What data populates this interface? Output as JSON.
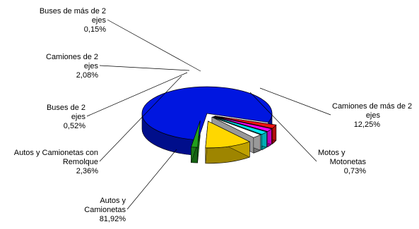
{
  "chart_data": {
    "type": "pie",
    "three_d": true,
    "exploded": true,
    "legend": "none",
    "slices": [
      {
        "label_lines": [
          "Autos y",
          "Camionetas"
        ],
        "pct_text": "81,92%",
        "value": 81.92,
        "color": "#0016E0"
      },
      {
        "label_lines": [
          "Autos y Camionetas con",
          "Remolque"
        ],
        "pct_text": "2,36%",
        "value": 2.36,
        "color": "#EE1111"
      },
      {
        "label_lines": [
          "Buses de 2",
          "ejes"
        ],
        "pct_text": "0,52%",
        "value": 0.52,
        "color": "#FF00FF"
      },
      {
        "label_lines": [
          "Camiones de 2",
          "ejes"
        ],
        "pct_text": "2,08%",
        "value": 2.08,
        "color": "#00E6EE"
      },
      {
        "label_lines": [
          "Buses de más de 2",
          "ejes"
        ],
        "pct_text": "0,15%",
        "value": 0.15,
        "color": "#FFFFFF"
      },
      {
        "label_lines": [
          "Camiones de más de 2",
          "ejes"
        ],
        "pct_text": "12,25%",
        "value": 12.25,
        "color": "#FFD700"
      },
      {
        "label_lines": [
          "Motos y",
          "Motonetas"
        ],
        "pct_text": "0,73%",
        "value": 0.73,
        "color": "#22A01E"
      }
    ]
  }
}
